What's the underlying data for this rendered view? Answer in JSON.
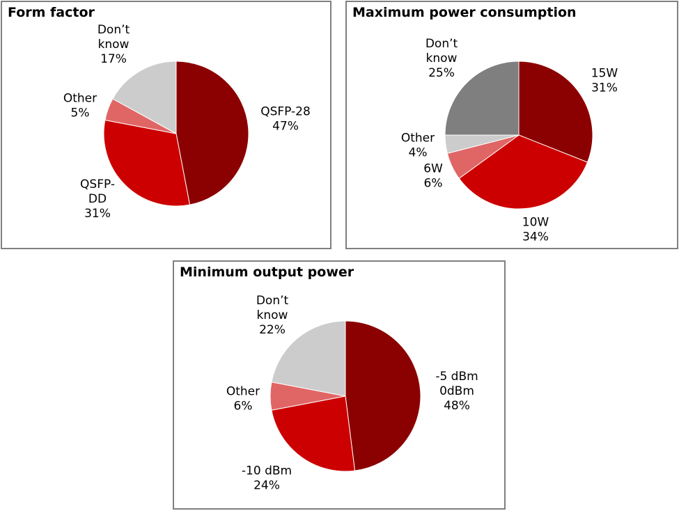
{
  "chart_data": [
    {
      "type": "pie",
      "title": "Form factor",
      "slices": [
        {
          "label": [
            "QSFP-28"
          ],
          "value": 47,
          "value_label": "47%",
          "color": "#8b0000"
        },
        {
          "label": [
            "QSFP-",
            "DD"
          ],
          "value": 31,
          "value_label": "31%",
          "color": "#cc0000"
        },
        {
          "label": [
            "Other"
          ],
          "value": 5,
          "value_label": "5%",
          "color": "#e06666"
        },
        {
          "label": [
            "Don’t",
            "know"
          ],
          "value": 17,
          "value_label": "17%",
          "color": "#cccccc"
        }
      ]
    },
    {
      "type": "pie",
      "title": "Maximum power consumption",
      "slices": [
        {
          "label": [
            "15W"
          ],
          "value": 31,
          "value_label": "31%",
          "color": "#8b0000"
        },
        {
          "label": [
            "10W"
          ],
          "value": 34,
          "value_label": "34%",
          "color": "#cc0000"
        },
        {
          "label": [
            "6W"
          ],
          "value": 6,
          "value_label": "6%",
          "color": "#e06666"
        },
        {
          "label": [
            "Other"
          ],
          "value": 4,
          "value_label": "4%",
          "color": "#cccccc"
        },
        {
          "label": [
            "Don’t",
            "know"
          ],
          "value": 25,
          "value_label": "25%",
          "color": "#7f7f7f"
        }
      ]
    },
    {
      "type": "pie",
      "title": "Minimum output power",
      "slices": [
        {
          "label": [
            "-5 dBm",
            "0dBm"
          ],
          "value": 48,
          "value_label": "48%",
          "color": "#8b0000"
        },
        {
          "label": [
            "-10 dBm"
          ],
          "value": 24,
          "value_label": "24%",
          "color": "#cc0000"
        },
        {
          "label": [
            "Other"
          ],
          "value": 6,
          "value_label": "6%",
          "color": "#e06666"
        },
        {
          "label": [
            "Don’t",
            "know"
          ],
          "value": 22,
          "value_label": "22%",
          "color": "#cccccc"
        }
      ]
    }
  ]
}
